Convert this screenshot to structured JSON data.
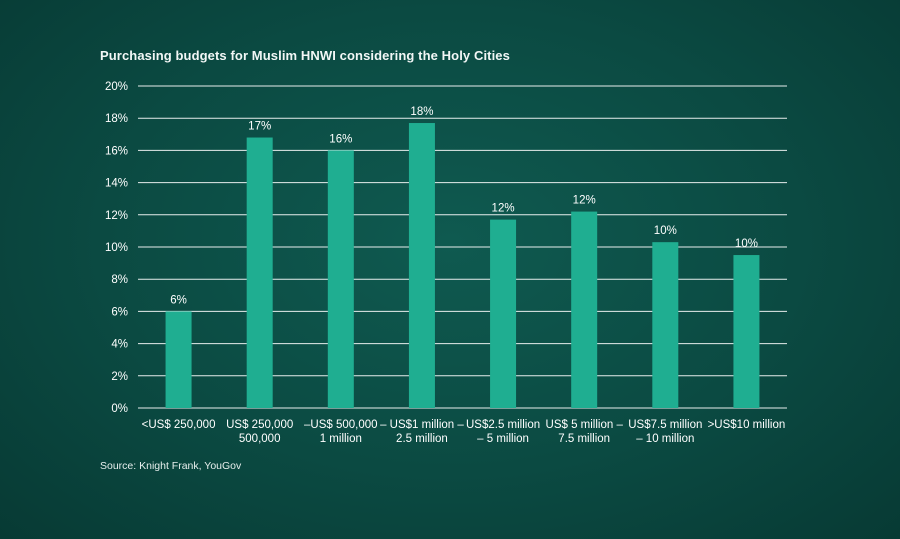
{
  "title": "Purchasing budgets for Muslim HNWI considering the Holy Cities",
  "source": "Source: Knight Frank, YouGov",
  "colors": {
    "background": "#0b4a42",
    "bar": "#1fae91",
    "gridline": "#ffffff",
    "text": "#ffffff"
  },
  "chart_data": {
    "type": "bar",
    "title": "Purchasing budgets for Muslim HNWI considering the Holy Cities",
    "categories": [
      [
        "<US$ 250,000"
      ],
      [
        "US$ 250,000",
        "500,000"
      ],
      [
        "–US$ 500,000",
        "1 million"
      ],
      [
        "– US$1 million –",
        "2.5 million"
      ],
      [
        "US$2.5 million",
        "– 5 million"
      ],
      [
        "US$ 5 million –",
        "7.5 million"
      ],
      [
        "US$7.5 million",
        "– 10 million"
      ],
      [
        ">US$10 million"
      ]
    ],
    "values": [
      6,
      16.8,
      16,
      17.7,
      11.7,
      12.2,
      10.3,
      9.5
    ],
    "data_labels": [
      "6%",
      "17%",
      "16%",
      "18%",
      "12%",
      "12%",
      "10%",
      "10%"
    ],
    "y_ticks": [
      "0%",
      "2%",
      "4%",
      "6%",
      "8%",
      "10%",
      "12%",
      "14%",
      "16%",
      "18%",
      "20%"
    ],
    "ylim": [
      0,
      20
    ],
    "xlabel": "",
    "ylabel": "",
    "grid": true,
    "legend": "none"
  }
}
